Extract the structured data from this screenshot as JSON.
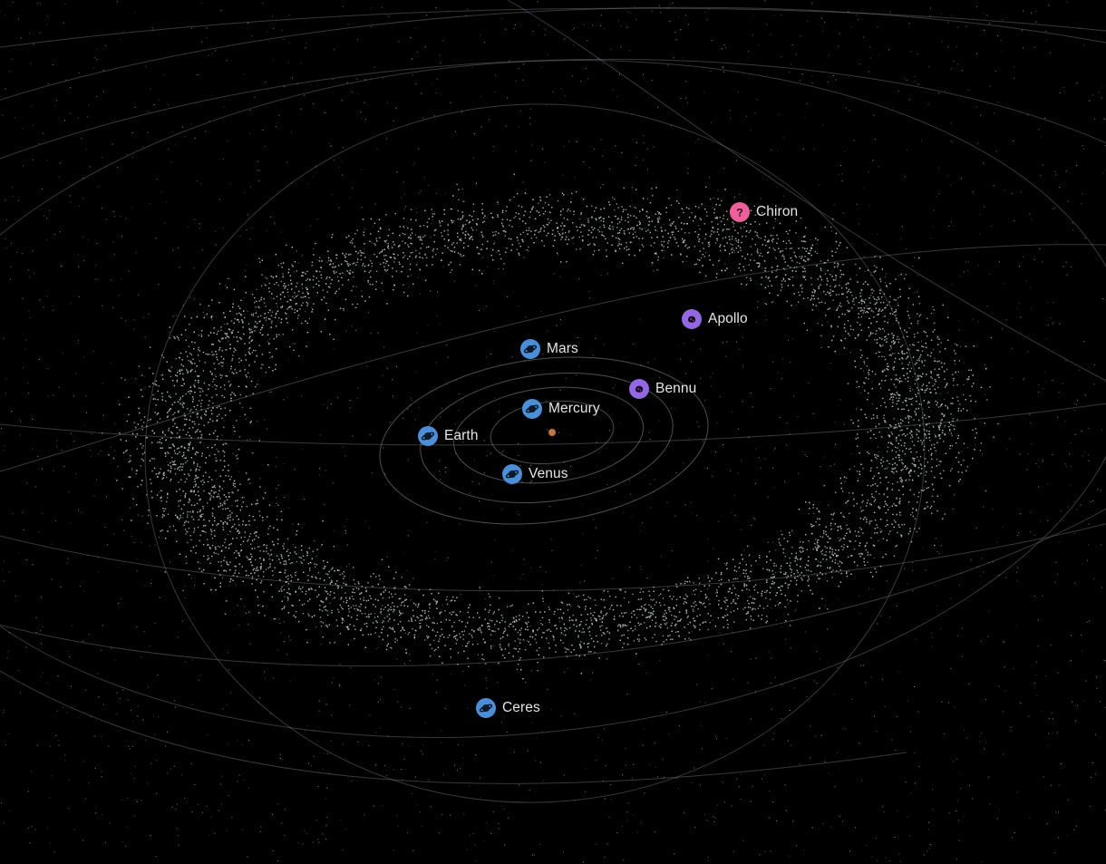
{
  "scene": {
    "background_color": "#000000",
    "sun_color": "#c8733a",
    "orbit_color": "#8a8f96",
    "asteroid_color": "#aebfb9"
  },
  "colors": {
    "planet": "#4a8fd8",
    "asteroid": "#9567e0",
    "comet": "#ef5f9b"
  },
  "objects": [
    {
      "id": "chiron",
      "label": "Chiron",
      "kind": "comet",
      "icon": "question-mark-icon"
    },
    {
      "id": "apollo",
      "label": "Apollo",
      "kind": "asteroid",
      "icon": "asteroid-icon"
    },
    {
      "id": "mars",
      "label": "Mars",
      "kind": "planet",
      "icon": "planet-icon"
    },
    {
      "id": "bennu",
      "label": "Bennu",
      "kind": "asteroid",
      "icon": "asteroid-icon"
    },
    {
      "id": "mercury",
      "label": "Mercury",
      "kind": "planet",
      "icon": "planet-icon"
    },
    {
      "id": "earth",
      "label": "Earth",
      "kind": "planet",
      "icon": "planet-icon"
    },
    {
      "id": "venus",
      "label": "Venus",
      "kind": "planet",
      "icon": "planet-icon"
    },
    {
      "id": "ceres",
      "label": "Ceres",
      "kind": "planet",
      "icon": "planet-icon"
    }
  ]
}
